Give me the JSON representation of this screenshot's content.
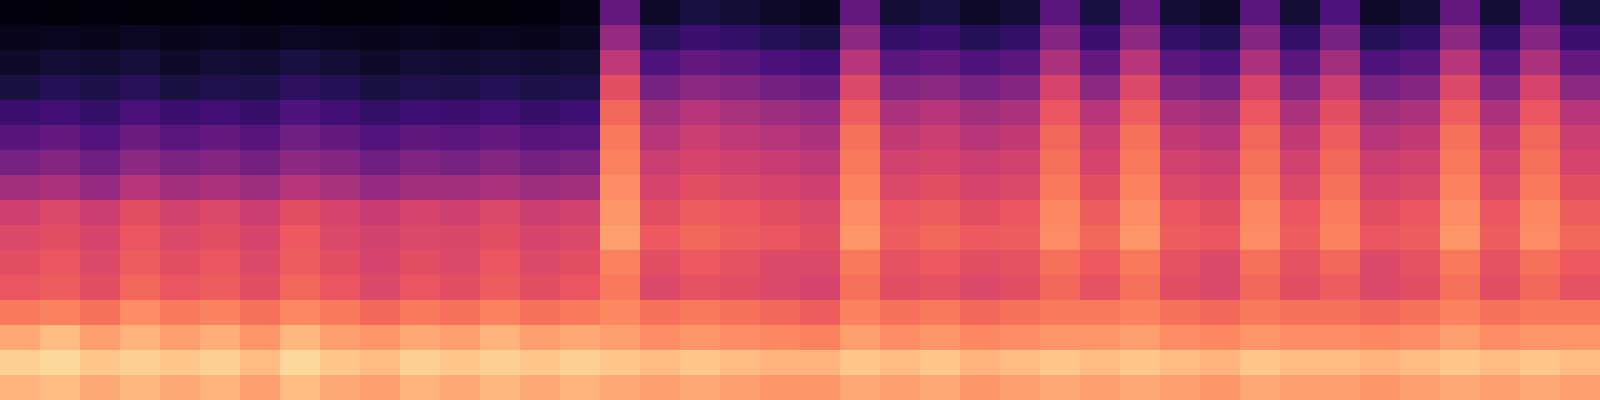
{
  "chart_data": {
    "type": "heatmap",
    "color": "magma",
    "color_range": [
      0,
      1
    ],
    "tick_labels": false,
    "cells": [
      [
        0.03,
        0.02,
        0.03,
        0.02,
        0.02,
        0.03,
        0.02,
        0.03,
        0.02,
        0.02,
        0.03,
        0.02,
        0.02,
        0.03,
        0.04,
        0.3,
        0.08,
        0.12,
        0.1,
        0.08,
        0.06,
        0.3,
        0.1,
        0.12,
        0.08,
        0.1,
        0.28,
        0.12,
        0.3,
        0.1,
        0.08,
        0.28,
        0.1,
        0.25,
        0.08,
        0.1,
        0.3,
        0.1,
        0.28,
        0.12
      ],
      [
        0.05,
        0.06,
        0.05,
        0.07,
        0.05,
        0.06,
        0.05,
        0.07,
        0.06,
        0.05,
        0.06,
        0.05,
        0.06,
        0.05,
        0.07,
        0.42,
        0.16,
        0.2,
        0.18,
        0.15,
        0.13,
        0.4,
        0.18,
        0.2,
        0.15,
        0.18,
        0.38,
        0.2,
        0.4,
        0.18,
        0.15,
        0.38,
        0.18,
        0.35,
        0.15,
        0.18,
        0.4,
        0.18,
        0.38,
        0.2
      ],
      [
        0.08,
        0.1,
        0.09,
        0.11,
        0.08,
        0.1,
        0.09,
        0.12,
        0.1,
        0.08,
        0.1,
        0.09,
        0.1,
        0.09,
        0.1,
        0.52,
        0.25,
        0.3,
        0.28,
        0.24,
        0.22,
        0.5,
        0.28,
        0.3,
        0.25,
        0.28,
        0.48,
        0.3,
        0.5,
        0.28,
        0.25,
        0.48,
        0.28,
        0.45,
        0.25,
        0.28,
        0.5,
        0.28,
        0.48,
        0.3
      ],
      [
        0.12,
        0.15,
        0.13,
        0.16,
        0.12,
        0.14,
        0.13,
        0.17,
        0.15,
        0.12,
        0.14,
        0.13,
        0.15,
        0.13,
        0.14,
        0.62,
        0.35,
        0.4,
        0.38,
        0.34,
        0.32,
        0.6,
        0.38,
        0.4,
        0.35,
        0.38,
        0.58,
        0.4,
        0.6,
        0.38,
        0.35,
        0.58,
        0.38,
        0.55,
        0.35,
        0.38,
        0.6,
        0.38,
        0.58,
        0.4
      ],
      [
        0.2,
        0.22,
        0.18,
        0.24,
        0.2,
        0.22,
        0.19,
        0.25,
        0.22,
        0.18,
        0.21,
        0.2,
        0.22,
        0.19,
        0.21,
        0.68,
        0.45,
        0.5,
        0.47,
        0.44,
        0.42,
        0.66,
        0.48,
        0.5,
        0.45,
        0.48,
        0.64,
        0.5,
        0.66,
        0.48,
        0.45,
        0.64,
        0.48,
        0.62,
        0.45,
        0.48,
        0.66,
        0.48,
        0.64,
        0.5
      ],
      [
        0.27,
        0.3,
        0.26,
        0.32,
        0.28,
        0.3,
        0.27,
        0.33,
        0.3,
        0.26,
        0.29,
        0.28,
        0.3,
        0.27,
        0.28,
        0.72,
        0.5,
        0.55,
        0.52,
        0.5,
        0.48,
        0.7,
        0.53,
        0.55,
        0.5,
        0.53,
        0.68,
        0.55,
        0.7,
        0.53,
        0.5,
        0.68,
        0.53,
        0.66,
        0.5,
        0.53,
        0.7,
        0.53,
        0.68,
        0.55
      ],
      [
        0.35,
        0.38,
        0.33,
        0.4,
        0.36,
        0.38,
        0.34,
        0.4,
        0.38,
        0.33,
        0.37,
        0.35,
        0.38,
        0.34,
        0.36,
        0.74,
        0.55,
        0.58,
        0.56,
        0.54,
        0.52,
        0.72,
        0.57,
        0.58,
        0.55,
        0.57,
        0.7,
        0.58,
        0.72,
        0.57,
        0.55,
        0.7,
        0.57,
        0.68,
        0.55,
        0.57,
        0.72,
        0.57,
        0.7,
        0.58
      ],
      [
        0.45,
        0.48,
        0.42,
        0.5,
        0.46,
        0.48,
        0.44,
        0.5,
        0.47,
        0.42,
        0.46,
        0.45,
        0.48,
        0.44,
        0.46,
        0.76,
        0.58,
        0.62,
        0.6,
        0.58,
        0.56,
        0.74,
        0.6,
        0.62,
        0.58,
        0.6,
        0.72,
        0.62,
        0.74,
        0.6,
        0.58,
        0.72,
        0.6,
        0.7,
        0.58,
        0.6,
        0.74,
        0.6,
        0.72,
        0.62
      ],
      [
        0.56,
        0.6,
        0.55,
        0.62,
        0.57,
        0.6,
        0.55,
        0.62,
        0.58,
        0.54,
        0.58,
        0.56,
        0.6,
        0.55,
        0.57,
        0.78,
        0.62,
        0.66,
        0.64,
        0.62,
        0.6,
        0.76,
        0.64,
        0.66,
        0.62,
        0.64,
        0.75,
        0.66,
        0.76,
        0.64,
        0.62,
        0.75,
        0.64,
        0.73,
        0.62,
        0.64,
        0.76,
        0.64,
        0.75,
        0.66
      ],
      [
        0.6,
        0.62,
        0.58,
        0.64,
        0.6,
        0.62,
        0.58,
        0.65,
        0.6,
        0.57,
        0.6,
        0.59,
        0.62,
        0.58,
        0.6,
        0.8,
        0.65,
        0.68,
        0.66,
        0.64,
        0.62,
        0.78,
        0.66,
        0.68,
        0.65,
        0.66,
        0.76,
        0.68,
        0.78,
        0.66,
        0.64,
        0.76,
        0.66,
        0.74,
        0.64,
        0.66,
        0.78,
        0.66,
        0.76,
        0.68
      ],
      [
        0.62,
        0.64,
        0.6,
        0.66,
        0.62,
        0.64,
        0.6,
        0.66,
        0.62,
        0.58,
        0.62,
        0.6,
        0.64,
        0.6,
        0.62,
        0.74,
        0.62,
        0.65,
        0.63,
        0.6,
        0.6,
        0.72,
        0.63,
        0.65,
        0.62,
        0.63,
        0.7,
        0.65,
        0.72,
        0.63,
        0.6,
        0.7,
        0.63,
        0.68,
        0.6,
        0.63,
        0.72,
        0.63,
        0.7,
        0.65
      ],
      [
        0.64,
        0.66,
        0.62,
        0.68,
        0.64,
        0.66,
        0.62,
        0.68,
        0.64,
        0.6,
        0.64,
        0.62,
        0.66,
        0.62,
        0.64,
        0.72,
        0.6,
        0.63,
        0.62,
        0.6,
        0.58,
        0.7,
        0.62,
        0.63,
        0.6,
        0.62,
        0.68,
        0.63,
        0.7,
        0.62,
        0.6,
        0.68,
        0.62,
        0.66,
        0.6,
        0.62,
        0.7,
        0.62,
        0.68,
        0.63
      ],
      [
        0.72,
        0.74,
        0.7,
        0.76,
        0.72,
        0.74,
        0.7,
        0.75,
        0.72,
        0.68,
        0.72,
        0.7,
        0.74,
        0.7,
        0.72,
        0.75,
        0.7,
        0.72,
        0.7,
        0.68,
        0.66,
        0.74,
        0.7,
        0.72,
        0.68,
        0.7,
        0.72,
        0.72,
        0.74,
        0.7,
        0.68,
        0.72,
        0.7,
        0.7,
        0.68,
        0.7,
        0.74,
        0.7,
        0.72,
        0.72
      ],
      [
        0.82,
        0.86,
        0.8,
        0.84,
        0.8,
        0.83,
        0.78,
        0.85,
        0.8,
        0.78,
        0.82,
        0.8,
        0.84,
        0.8,
        0.82,
        0.8,
        0.76,
        0.78,
        0.76,
        0.75,
        0.74,
        0.8,
        0.76,
        0.78,
        0.75,
        0.76,
        0.78,
        0.78,
        0.8,
        0.76,
        0.75,
        0.78,
        0.76,
        0.76,
        0.75,
        0.76,
        0.8,
        0.76,
        0.78,
        0.78
      ],
      [
        0.9,
        0.92,
        0.88,
        0.9,
        0.88,
        0.9,
        0.86,
        0.92,
        0.88,
        0.86,
        0.9,
        0.88,
        0.9,
        0.88,
        0.9,
        0.88,
        0.86,
        0.88,
        0.86,
        0.84,
        0.84,
        0.88,
        0.86,
        0.88,
        0.84,
        0.86,
        0.88,
        0.86,
        0.88,
        0.86,
        0.84,
        0.88,
        0.86,
        0.86,
        0.84,
        0.86,
        0.88,
        0.86,
        0.88,
        0.86
      ],
      [
        0.84,
        0.86,
        0.82,
        0.85,
        0.82,
        0.84,
        0.8,
        0.86,
        0.82,
        0.8,
        0.84,
        0.82,
        0.85,
        0.82,
        0.84,
        0.82,
        0.8,
        0.82,
        0.8,
        0.78,
        0.78,
        0.82,
        0.8,
        0.82,
        0.78,
        0.8,
        0.82,
        0.8,
        0.82,
        0.8,
        0.78,
        0.82,
        0.8,
        0.8,
        0.78,
        0.8,
        0.82,
        0.8,
        0.82,
        0.8
      ]
    ]
  }
}
